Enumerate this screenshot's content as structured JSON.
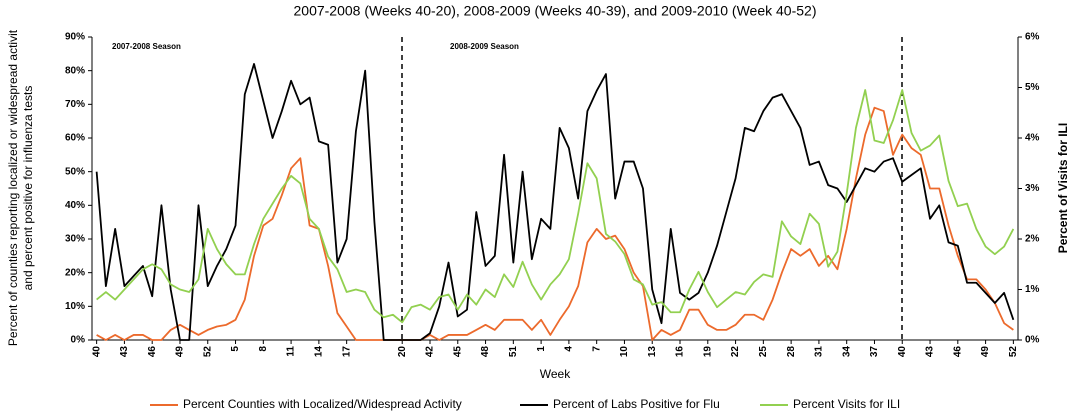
{
  "chart_data": {
    "type": "line",
    "title": "2007-2008 (Weeks 40-20), 2008-2009 (Weeks 40-39), and 2009-2010 (Week 40-52)",
    "x_label": "Week",
    "y_label": [
      "Percent of counties reporting localized or widespread activit",
      "and percent positive for influenza tests"
    ],
    "y2_label": "Percent of Visits for ILI",
    "annotations": [
      "2007-2008 Season",
      "2008-2009 Season"
    ],
    "categories": [
      "40",
      null,
      null,
      "43",
      null,
      null,
      "46",
      null,
      null,
      "49",
      null,
      null,
      "52",
      null,
      null,
      "5",
      null,
      null,
      "8",
      null,
      null,
      "11",
      null,
      null,
      "14",
      null,
      null,
      "17",
      null,
      null,
      null,
      null,
      null,
      "20",
      null,
      null,
      "42",
      null,
      null,
      "45",
      null,
      null,
      "48",
      null,
      null,
      "51",
      null,
      null,
      "1",
      null,
      null,
      "4",
      null,
      null,
      "7",
      null,
      null,
      "10",
      null,
      null,
      "13",
      null,
      null,
      "16",
      null,
      null,
      "19",
      null,
      null,
      "22",
      null,
      null,
      "25",
      null,
      null,
      "28",
      null,
      null,
      "31",
      null,
      null,
      "34",
      null,
      null,
      "37",
      null,
      null,
      "40",
      null,
      null,
      "43",
      null,
      null,
      "46",
      null,
      null,
      "49",
      null,
      null,
      "52"
    ],
    "series": [
      {
        "name": "Percent Counties with Localized/Widespread Activity",
        "color": "#ec6a2c",
        "values": [
          1.5,
          0,
          1.5,
          0,
          1.5,
          1.5,
          0,
          0,
          3,
          4.5,
          3,
          1.5,
          3,
          4,
          4.5,
          6,
          12,
          25,
          34,
          36,
          43,
          51,
          54,
          34,
          33,
          22,
          8,
          4,
          0,
          0,
          0,
          0,
          0,
          0,
          0,
          0,
          1.5,
          0,
          1.5,
          1.5,
          1.5,
          3,
          4.5,
          3,
          6,
          6,
          6,
          3,
          6,
          1.5,
          6,
          10,
          16,
          29,
          33,
          30,
          31,
          27,
          20,
          16,
          0,
          3,
          1.5,
          3,
          9,
          9,
          4.5,
          3,
          3,
          4.5,
          7.5,
          7.5,
          6,
          12,
          20,
          27,
          25,
          27,
          22,
          25,
          21,
          33,
          48,
          61,
          69,
          68,
          55,
          61,
          57,
          55,
          45,
          45,
          34,
          25,
          18,
          18,
          15,
          11,
          5,
          3
        ]
      },
      {
        "name": "Percent of Labs Positive for Flu",
        "color": "#000000",
        "values": [
          50,
          16,
          33,
          16,
          19,
          22,
          13,
          40,
          15,
          0,
          0,
          40,
          16,
          22,
          27,
          34,
          73,
          82,
          71,
          60,
          68,
          77,
          70,
          72,
          59,
          58,
          23,
          30,
          62,
          80,
          35,
          0,
          0,
          0,
          0,
          0,
          2,
          10,
          23,
          7,
          9,
          38,
          22,
          25,
          55,
          23,
          50,
          24,
          36,
          33,
          63,
          57,
          42,
          68,
          74,
          79,
          42,
          53,
          53,
          45,
          15,
          5,
          33,
          14,
          12,
          14,
          20,
          28,
          38,
          48,
          63,
          62,
          68,
          72,
          73,
          68,
          63,
          52,
          53,
          46,
          45,
          41,
          46,
          51,
          50,
          53,
          54,
          47,
          49,
          51,
          36,
          40,
          29,
          28,
          17,
          17,
          14,
          11,
          14,
          6
        ]
      },
      {
        "name": "Percent Visits for ILI",
        "color": "#92d050",
        "axis": "y2",
        "values": [
          0.8,
          0.95,
          0.8,
          1,
          1.2,
          1.4,
          1.5,
          1.4,
          1.1,
          1,
          0.95,
          1.2,
          2.2,
          1.8,
          1.5,
          1.3,
          1.3,
          1.9,
          2.4,
          2.7,
          3,
          3.25,
          3.1,
          2.4,
          2.2,
          1.65,
          1.4,
          0.95,
          1,
          0.95,
          0.6,
          0.45,
          0.5,
          0.35,
          0.65,
          0.7,
          0.6,
          0.85,
          0.9,
          0.6,
          0.9,
          0.7,
          1,
          0.85,
          1.3,
          1.05,
          1.55,
          1.1,
          0.8,
          1.1,
          1.3,
          1.6,
          2.5,
          3.5,
          3.2,
          2.1,
          1.95,
          1.7,
          1.2,
          1.1,
          0.7,
          0.75,
          0.55,
          0.55,
          1,
          1.35,
          0.95,
          0.65,
          0.8,
          0.95,
          0.9,
          1.15,
          1.3,
          1.25,
          2.35,
          2.05,
          1.9,
          2.5,
          2.3,
          1.45,
          1.75,
          2.9,
          4.2,
          4.95,
          3.95,
          3.9,
          4.35,
          4.95,
          4.1,
          3.75,
          3.85,
          4.05,
          3.15,
          2.65,
          2.7,
          2.2,
          1.85,
          1.7,
          1.85,
          2.2
        ]
      }
    ],
    "ylim": [
      0,
      90
    ],
    "yticks": [
      {
        "value": 0,
        "label": "0%"
      },
      {
        "value": 10,
        "label": "10%"
      },
      {
        "value": 20,
        "label": "20%"
      },
      {
        "value": 30,
        "label": "30%"
      },
      {
        "value": 40,
        "label": "40%"
      },
      {
        "value": 50,
        "label": "50%"
      },
      {
        "value": 60,
        "label": "60%"
      },
      {
        "value": 70,
        "label": "70%"
      },
      {
        "value": 80,
        "label": "80%"
      },
      {
        "value": 90,
        "label": "90%"
      }
    ],
    "y2lim": [
      0,
      6
    ],
    "y2ticks": [
      {
        "value": 0,
        "label": "0%"
      },
      {
        "value": 1,
        "label": "1%"
      },
      {
        "value": 2,
        "label": "2%"
      },
      {
        "value": 3,
        "label": "3%"
      },
      {
        "value": 4,
        "label": "4%"
      },
      {
        "value": 5,
        "label": "5%"
      },
      {
        "value": 6,
        "label": "6%"
      }
    ],
    "legend": "bottom"
  }
}
